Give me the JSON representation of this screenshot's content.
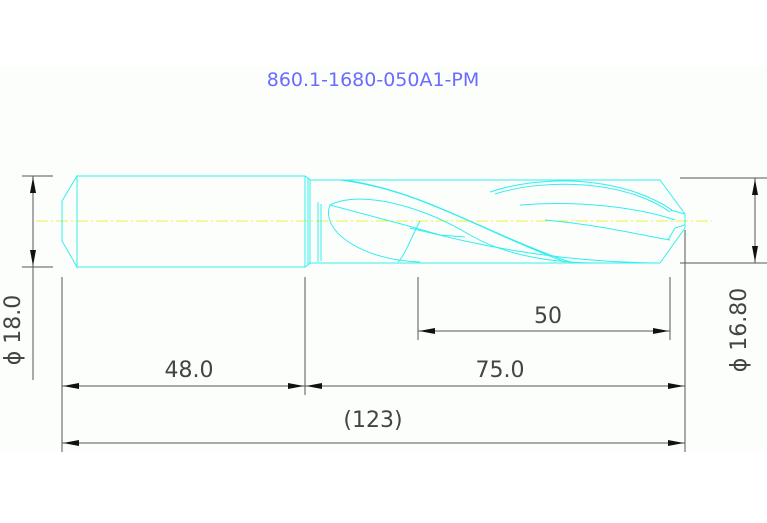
{
  "title": "860.1-1680-050A1-PM",
  "dimensions": {
    "shank_diameter": "ϕ 18.0",
    "body_diameter": "ϕ 16.80",
    "shank_length": "48.0",
    "body_length": "75.0",
    "flute_length": "50",
    "total_length": "(123)"
  },
  "colors": {
    "part": "#33eeee",
    "centerline": "#eeee44",
    "title": "#6b6bff",
    "dimension": "#555555"
  }
}
